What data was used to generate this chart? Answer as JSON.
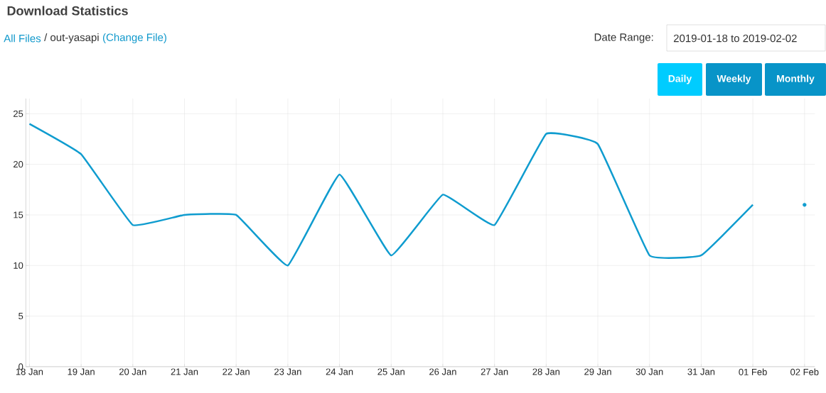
{
  "chart_data": {
    "type": "line",
    "title": "Download Statistics",
    "annotations": [
      "All Files",
      "/ out-yasapi",
      "(Change File)",
      "Date Range:",
      "2019-01-18 to 2019-02-02",
      "Daily",
      "Weekly",
      "Monthly"
    ],
    "categories": [
      "18 Jan",
      "19 Jan",
      "20 Jan",
      "21 Jan",
      "22 Jan",
      "23 Jan",
      "24 Jan",
      "25 Jan",
      "26 Jan",
      "27 Jan",
      "28 Jan",
      "29 Jan",
      "30 Jan",
      "31 Jan",
      "01 Feb",
      "02 Feb"
    ],
    "series": [
      {
        "color": "#0f9ccf",
        "marker": "none",
        "values": [
          24,
          21,
          14,
          15,
          15,
          10,
          19,
          11,
          17,
          14,
          23,
          22,
          11,
          11,
          16,
          null
        ]
      },
      {
        "type": "scatter",
        "color": "#0f9ccf",
        "marker": "circle",
        "values": [
          null,
          null,
          null,
          null,
          null,
          null,
          null,
          null,
          null,
          null,
          null,
          null,
          null,
          null,
          null,
          16
        ]
      }
    ],
    "ylim": [
      0,
      26.5
    ],
    "yticks": [
      0,
      5,
      10,
      15,
      20,
      25
    ],
    "grid": true
  }
}
